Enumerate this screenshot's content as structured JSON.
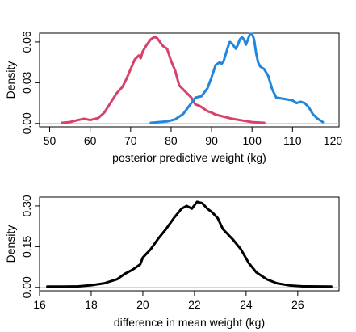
{
  "chart_data": [
    {
      "type": "line",
      "xlabel": "posterior predictive weight (kg)",
      "ylabel": "Density",
      "xlim": [
        47.5,
        121.5
      ],
      "ylim": [
        -0.0025,
        0.0665
      ],
      "xticks": [
        50,
        60,
        70,
        80,
        90,
        100,
        110,
        120
      ],
      "xtick_labels": [
        "50",
        "60",
        "70",
        "80",
        "90",
        "100",
        "110",
        "120"
      ],
      "yticks": [
        0.0,
        0.03,
        0.06
      ],
      "ytick_labels": [
        "0.00",
        "0.03",
        "0.06"
      ],
      "grid": false,
      "baseline": 0,
      "series": [
        {
          "color": "#d64269",
          "x": [
            53,
            55,
            57,
            58.5,
            60,
            62,
            63.5,
            65,
            66.5,
            68,
            69,
            70,
            71,
            72,
            72.5,
            73,
            74,
            75,
            75.5,
            76,
            76.5,
            77,
            78,
            79,
            80,
            81,
            82,
            83,
            84,
            85,
            86,
            87,
            88,
            89,
            90,
            91,
            93,
            95,
            98,
            100,
            103
          ],
          "y": [
            0.0005,
            0.001,
            0.0025,
            0.0035,
            0.0025,
            0.004,
            0.008,
            0.015,
            0.022,
            0.027,
            0.033,
            0.04,
            0.047,
            0.05,
            0.048,
            0.053,
            0.058,
            0.062,
            0.063,
            0.0635,
            0.063,
            0.061,
            0.057,
            0.055,
            0.046,
            0.039,
            0.028,
            0.025,
            0.022,
            0.019,
            0.014,
            0.013,
            0.011,
            0.009,
            0.008,
            0.0065,
            0.005,
            0.0035,
            0.002,
            0.001,
            0.0005
          ]
        },
        {
          "color": "#2386dc",
          "x": [
            75,
            77,
            79,
            81,
            83,
            84.5,
            86,
            87.5,
            89,
            90,
            91,
            92,
            92.5,
            93,
            94,
            94.5,
            95,
            96,
            96.5,
            97,
            97.5,
            98,
            98.5,
            99,
            99.5,
            100,
            100.5,
            101,
            101.5,
            102,
            103,
            104,
            105,
            106,
            108,
            110,
            111,
            112,
            113,
            114,
            115,
            116,
            117.5
          ],
          "y": [
            0.0005,
            0.001,
            0.0015,
            0.003,
            0.007,
            0.013,
            0.019,
            0.02,
            0.026,
            0.034,
            0.043,
            0.045,
            0.044,
            0.046,
            0.056,
            0.06,
            0.059,
            0.055,
            0.058,
            0.062,
            0.0635,
            0.062,
            0.058,
            0.062,
            0.066,
            0.066,
            0.062,
            0.052,
            0.045,
            0.042,
            0.04,
            0.035,
            0.025,
            0.019,
            0.018,
            0.017,
            0.015,
            0.016,
            0.015,
            0.012,
            0.007,
            0.004,
            0.001
          ]
        }
      ]
    },
    {
      "type": "line",
      "xlabel": "difference in mean weight (kg)",
      "ylabel": "Density",
      "xlim": [
        16.0,
        27.6
      ],
      "ylim": [
        -0.0125,
        0.3325
      ],
      "xticks": [
        16,
        18,
        20,
        22,
        24,
        26
      ],
      "xtick_labels": [
        "16",
        "18",
        "20",
        "22",
        "24",
        "26"
      ],
      "yticks": [
        0.0,
        0.15,
        0.3
      ],
      "ytick_labels": [
        "0.00",
        "0.15",
        "0.30"
      ],
      "grid": false,
      "baseline": 0,
      "series": [
        {
          "color": "#000000",
          "x": [
            16.3,
            17.0,
            17.5,
            18.0,
            18.5,
            19.0,
            19.3,
            19.6,
            19.9,
            20.0,
            20.3,
            20.6,
            20.9,
            21.2,
            21.5,
            21.7,
            21.9,
            22.1,
            22.3,
            22.5,
            22.7,
            22.9,
            23.1,
            23.3,
            23.5,
            23.8,
            24.1,
            24.4,
            24.8,
            25.2,
            25.7,
            26.2,
            27.3
          ],
          "y": [
            0.003,
            0.003,
            0.004,
            0.008,
            0.015,
            0.03,
            0.05,
            0.065,
            0.085,
            0.11,
            0.14,
            0.18,
            0.215,
            0.255,
            0.29,
            0.3,
            0.29,
            0.315,
            0.31,
            0.29,
            0.275,
            0.255,
            0.215,
            0.195,
            0.175,
            0.14,
            0.09,
            0.055,
            0.03,
            0.015,
            0.007,
            0.004,
            0.003
          ]
        }
      ]
    }
  ]
}
